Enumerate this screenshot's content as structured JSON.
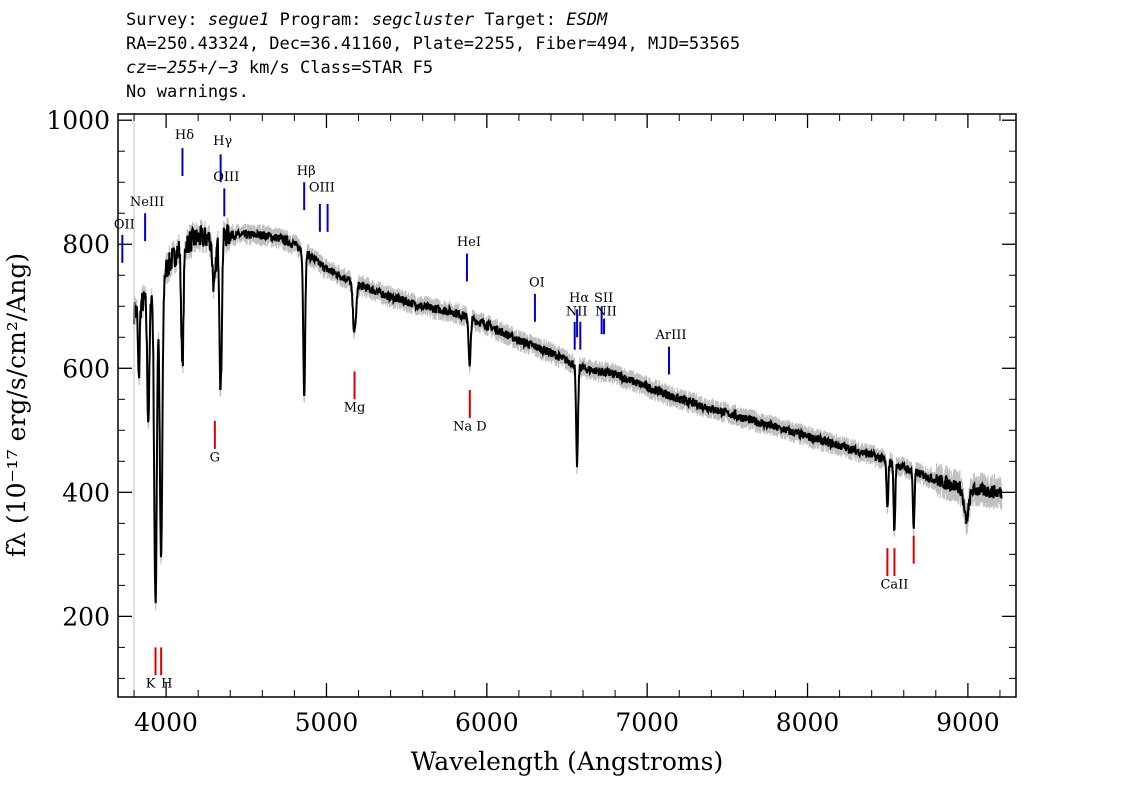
{
  "header": {
    "survey_label": "Survey:",
    "survey": "segue1",
    "program_label": "Program:",
    "program": "segcluster",
    "target_label": "Target:",
    "target": "ESDM",
    "line2": "RA=250.43324, Dec=36.41160, Plate=2255, Fiber=494, MJD=53565",
    "cz_prefix": "cz=",
    "cz_value": "−255+/−3",
    "cz_suffix": " km/s Class=STAR F5",
    "line4": "No warnings."
  },
  "chart_data": {
    "type": "line",
    "xlabel": "Wavelength (Angstroms)",
    "ylabel": "fλ (10⁻¹⁷ erg/s/cm²/Ang)",
    "xlim": [
      3700,
      9300
    ],
    "ylim": [
      70,
      1010
    ],
    "xticks": [
      4000,
      5000,
      6000,
      7000,
      8000,
      9000
    ],
    "yticks": [
      200,
      400,
      600,
      800,
      1000
    ],
    "grid": false,
    "colors": {
      "flux": "#000000",
      "error": "#c0c0c0",
      "emission": "#0000cc",
      "absorption": "#dd0000"
    },
    "continuum": {
      "x": [
        3800,
        3900,
        4000,
        4100,
        4200,
        4300,
        4400,
        4500,
        4600,
        4700,
        4800,
        4900,
        5000,
        5200,
        5400,
        5600,
        5800,
        6000,
        6200,
        6400,
        6600,
        6800,
        7000,
        7200,
        7400,
        7600,
        7800,
        8000,
        8200,
        8400,
        8600,
        8800,
        9000,
        9200
      ],
      "y": [
        690,
        720,
        760,
        800,
        810,
        810,
        815,
        815,
        815,
        810,
        800,
        780,
        760,
        735,
        715,
        700,
        690,
        670,
        645,
        625,
        600,
        590,
        570,
        550,
        535,
        520,
        505,
        490,
        475,
        460,
        440,
        420,
        405,
        400
      ]
    },
    "absorption_features": [
      {
        "x": 3830,
        "depth": 120,
        "width": 5
      },
      {
        "x": 3889,
        "depth": 200,
        "width": 7
      },
      {
        "x": 3933.7,
        "depth": 520,
        "width": 8
      },
      {
        "x": 3968.5,
        "depth": 460,
        "width": 8
      },
      {
        "x": 4101.7,
        "depth": 200,
        "width": 7
      },
      {
        "x": 4300,
        "depth": 80,
        "width": 10
      },
      {
        "x": 4340.5,
        "depth": 250,
        "width": 7
      },
      {
        "x": 4861.3,
        "depth": 230,
        "width": 6
      },
      {
        "x": 5175,
        "depth": 80,
        "width": 10
      },
      {
        "x": 5893,
        "depth": 80,
        "width": 6
      },
      {
        "x": 6562.8,
        "depth": 160,
        "width": 6
      },
      {
        "x": 8498,
        "depth": 80,
        "width": 5
      },
      {
        "x": 8542,
        "depth": 110,
        "width": 5
      },
      {
        "x": 8662,
        "depth": 90,
        "width": 5
      },
      {
        "x": 8990,
        "depth": 50,
        "width": 15
      }
    ],
    "emission_lines": [
      {
        "label": "OII",
        "x": 3727,
        "y_top": 815,
        "y_bottom": 770,
        "label_y": 825
      },
      {
        "label": "NeIII",
        "x": 3869,
        "y_top": 850,
        "y_bottom": 805,
        "label_y": 862
      },
      {
        "label": "Hδ",
        "x": 4102,
        "y_top": 955,
        "y_bottom": 910,
        "label_y": 970
      },
      {
        "label": "Hγ",
        "x": 4340,
        "y_top": 945,
        "y_bottom": 900,
        "label_y": 960
      },
      {
        "label": "OIII",
        "x": 4363,
        "y_top": 890,
        "y_bottom": 845,
        "label_y": 902
      },
      {
        "label": "Hβ",
        "x": 4861,
        "y_top": 900,
        "y_bottom": 855,
        "label_y": 912
      },
      {
        "label": "OIII",
        "x": 4959,
        "y_top": 865,
        "y_bottom": 820,
        "label_y": 885
      },
      {
        "label": "",
        "x": 5007,
        "y_top": 865,
        "y_bottom": 820,
        "label_y": 885
      },
      {
        "label": "HeI",
        "x": 5876,
        "y_top": 785,
        "y_bottom": 740,
        "label_y": 797
      },
      {
        "label": "OI",
        "x": 6300,
        "y_top": 720,
        "y_bottom": 675,
        "label_y": 732
      },
      {
        "label": "NII",
        "x": 6548,
        "y_top": 675,
        "y_bottom": 630,
        "label_y": 685
      },
      {
        "label": "Hα",
        "x": 6563,
        "y_top": 695,
        "y_bottom": 650,
        "label_y": 707
      },
      {
        "label": "",
        "x": 6583,
        "y_top": 675,
        "y_bottom": 630,
        "label_y": 685
      },
      {
        "label": "SII",
        "x": 6716,
        "y_top": 700,
        "y_bottom": 655,
        "label_y": 707
      },
      {
        "label": "NII",
        "x": 6731,
        "y_top": 680,
        "y_bottom": 655,
        "label_y": 685
      },
      {
        "label": "ArIII",
        "x": 7136,
        "y_top": 635,
        "y_bottom": 590,
        "label_y": 647
      }
    ],
    "absorption_lines": [
      {
        "label": "K",
        "x": 3934,
        "y_top": 150,
        "y_bottom": 105,
        "label_y": 85,
        "anchor": "end"
      },
      {
        "label": "H",
        "x": 3969,
        "y_top": 150,
        "y_bottom": 105,
        "label_y": 85,
        "anchor": "start"
      },
      {
        "label": "G",
        "x": 4304,
        "y_top": 515,
        "y_bottom": 470,
        "label_y": 450,
        "anchor": "middle"
      },
      {
        "label": "Mg",
        "x": 5175,
        "y_top": 595,
        "y_bottom": 550,
        "label_y": 530,
        "anchor": "middle"
      },
      {
        "label": "Na  D",
        "x": 5894,
        "y_top": 565,
        "y_bottom": 520,
        "label_y": 500,
        "anchor": "middle"
      },
      {
        "label": "",
        "x": 8498,
        "y_top": 310,
        "y_bottom": 265,
        "label_y": 245,
        "anchor": "middle"
      },
      {
        "label": "CaII",
        "x": 8542,
        "y_top": 310,
        "y_bottom": 265,
        "label_y": 245,
        "anchor": "middle"
      },
      {
        "label": "",
        "x": 8662,
        "y_top": 330,
        "y_bottom": 285,
        "label_y": 245,
        "anchor": "middle"
      }
    ]
  }
}
